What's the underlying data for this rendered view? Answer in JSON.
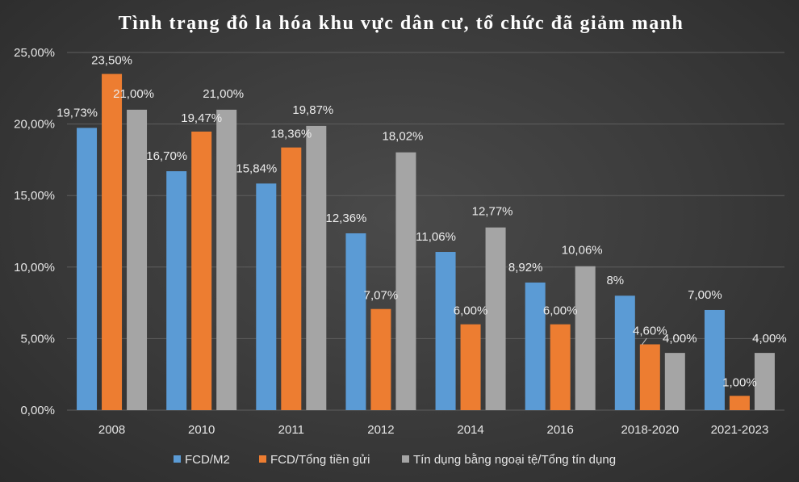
{
  "chart_data": {
    "type": "bar",
    "title": "Tình trạng đô la hóa khu vực dân cư, tổ chức đã giảm mạnh",
    "categories": [
      "2008",
      "2010",
      "2011",
      "2012",
      "2014",
      "2016",
      "2018-2020",
      "2021-2023"
    ],
    "ylim": [
      0,
      25
    ],
    "yticks": [
      0,
      5,
      10,
      15,
      20,
      25
    ],
    "ytick_labels": [
      "0,00%",
      "5,00%",
      "10,00%",
      "15,00%",
      "20,00%",
      "25,00%"
    ],
    "grid": true,
    "legend_position": "bottom",
    "series": [
      {
        "name": "FCD/M2",
        "color": "#5b9bd5",
        "values": [
          19.73,
          16.7,
          15.84,
          12.36,
          11.06,
          8.92,
          8.0,
          7.0
        ],
        "labels": [
          "19,73%",
          "16,70%",
          "15,84%",
          "12,36%",
          "11,06%",
          "8,92%",
          "8%",
          "7,00%"
        ]
      },
      {
        "name": "FCD/Tổng tiền gửi",
        "color": "#ed7d31",
        "values": [
          23.5,
          19.47,
          18.36,
          7.07,
          6.0,
          6.0,
          4.6,
          1.0
        ],
        "labels": [
          "23,50%",
          "19,47%",
          "18,36%",
          "7,07%",
          "6,00%",
          "6,00%",
          "4,60%",
          "1,00%"
        ]
      },
      {
        "name": "Tín dụng bằng ngoại tệ/Tổng tín dụng",
        "color": "#a5a5a5",
        "values": [
          21.0,
          21.0,
          19.87,
          18.02,
          12.77,
          10.06,
          4.0,
          4.0
        ],
        "labels": [
          "21,00%",
          "21,00%",
          "19,87%",
          "18,02%",
          "12,77%",
          "10,06%",
          "4,00%",
          "4,00%"
        ]
      }
    ]
  }
}
